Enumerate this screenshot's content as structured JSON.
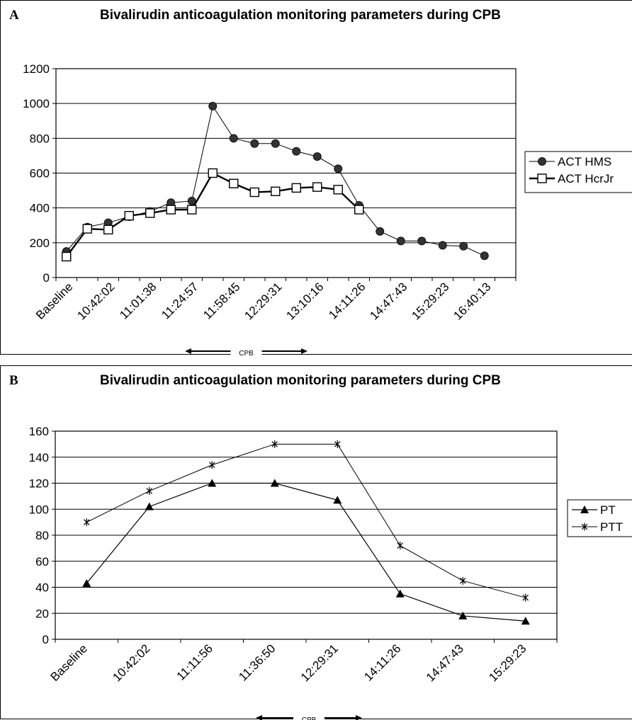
{
  "chart_data": [
    {
      "panel_label": "A",
      "type": "line",
      "title": "Bivalirudin anticoagulation monitoring parameters  during CPB",
      "ylim": [
        0,
        1200
      ],
      "yticks": [
        0,
        200,
        400,
        600,
        800,
        1000,
        1200
      ],
      "grid": "horizontal",
      "legend": "right",
      "tick_labels": [
        "Baseline",
        "10:42:02",
        "11:01:38",
        "11:24:57",
        "11:58:45",
        "12:29:31",
        "13:10:16",
        "14:11:26",
        "14:47:43",
        "15:29:23",
        "16:40:13"
      ],
      "point_count": 22,
      "cpb_label": "CPB",
      "series": [
        {
          "name": "ACT HMS",
          "marker": "circle",
          "values": [
            150,
            290,
            315,
            350,
            380,
            430,
            440,
            985,
            800,
            770,
            770,
            725,
            695,
            625,
            415,
            265,
            210,
            210,
            185,
            180,
            125,
            null
          ]
        },
        {
          "name": "ACT HcrJr",
          "marker": "square",
          "values": [
            120,
            280,
            275,
            355,
            370,
            390,
            390,
            600,
            540,
            490,
            495,
            515,
            520,
            505,
            390,
            null,
            null,
            null,
            null,
            null,
            null,
            null
          ]
        }
      ]
    },
    {
      "panel_label": "B",
      "type": "line",
      "title": "Bivalirudin anticoagulation monitoring parameters  during CPB",
      "ylim": [
        0,
        160
      ],
      "yticks": [
        0,
        20,
        40,
        60,
        80,
        100,
        120,
        140,
        160
      ],
      "grid": "horizontal",
      "legend": "right",
      "categories": [
        "Baseline",
        "10:42:02",
        "11:11:56",
        "11:36:50",
        "12:29:31",
        "14:11:26",
        "14:47:43",
        "15:29:23"
      ],
      "cpb_label": "CPB",
      "series": [
        {
          "name": "PT",
          "marker": "triangle",
          "values": [
            43,
            102,
            120,
            120,
            107,
            35,
            18,
            14
          ]
        },
        {
          "name": "PTT",
          "marker": "star",
          "values": [
            90,
            114,
            134,
            150,
            150,
            72,
            45,
            32
          ]
        }
      ]
    }
  ]
}
